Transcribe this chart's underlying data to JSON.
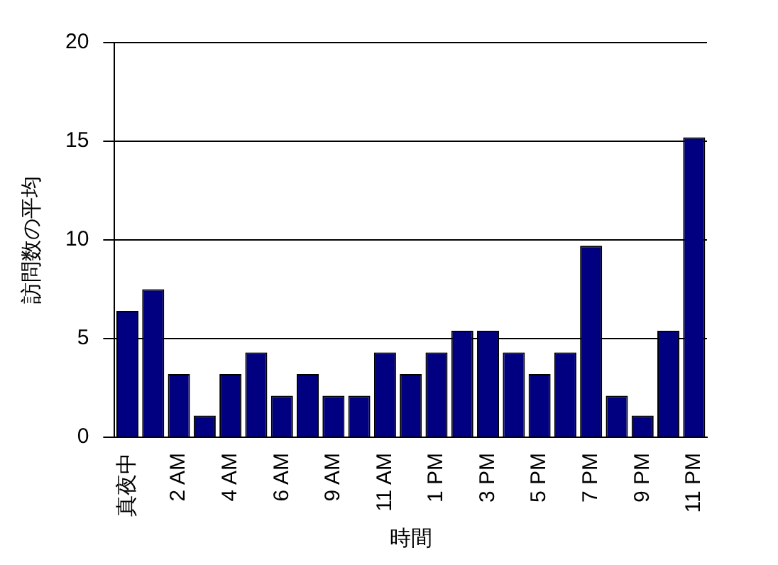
{
  "chart_data": {
    "type": "bar",
    "xlabel": "時間",
    "ylabel": "訪問数の平均",
    "categories": [
      "真夜中",
      null,
      "2 AM",
      null,
      "4 AM",
      null,
      "6 AM",
      null,
      "9 AM",
      null,
      "11 AM",
      null,
      "1 PM",
      null,
      "3 PM",
      null,
      "5 PM",
      null,
      "7 PM",
      null,
      "9 PM",
      null,
      "11 PM"
    ],
    "values": [
      6.4,
      7.5,
      3.2,
      1.1,
      3.2,
      4.3,
      2.1,
      3.2,
      2.1,
      2.1,
      4.3,
      3.2,
      4.3,
      5.4,
      5.4,
      4.3,
      3.2,
      4.3,
      9.7,
      2.1,
      1.1,
      5.4,
      15.2
    ],
    "color": "#000080",
    "ylim": [
      0,
      20
    ],
    "yticks": [
      0,
      5,
      10,
      15,
      20
    ],
    "grid": "y"
  }
}
